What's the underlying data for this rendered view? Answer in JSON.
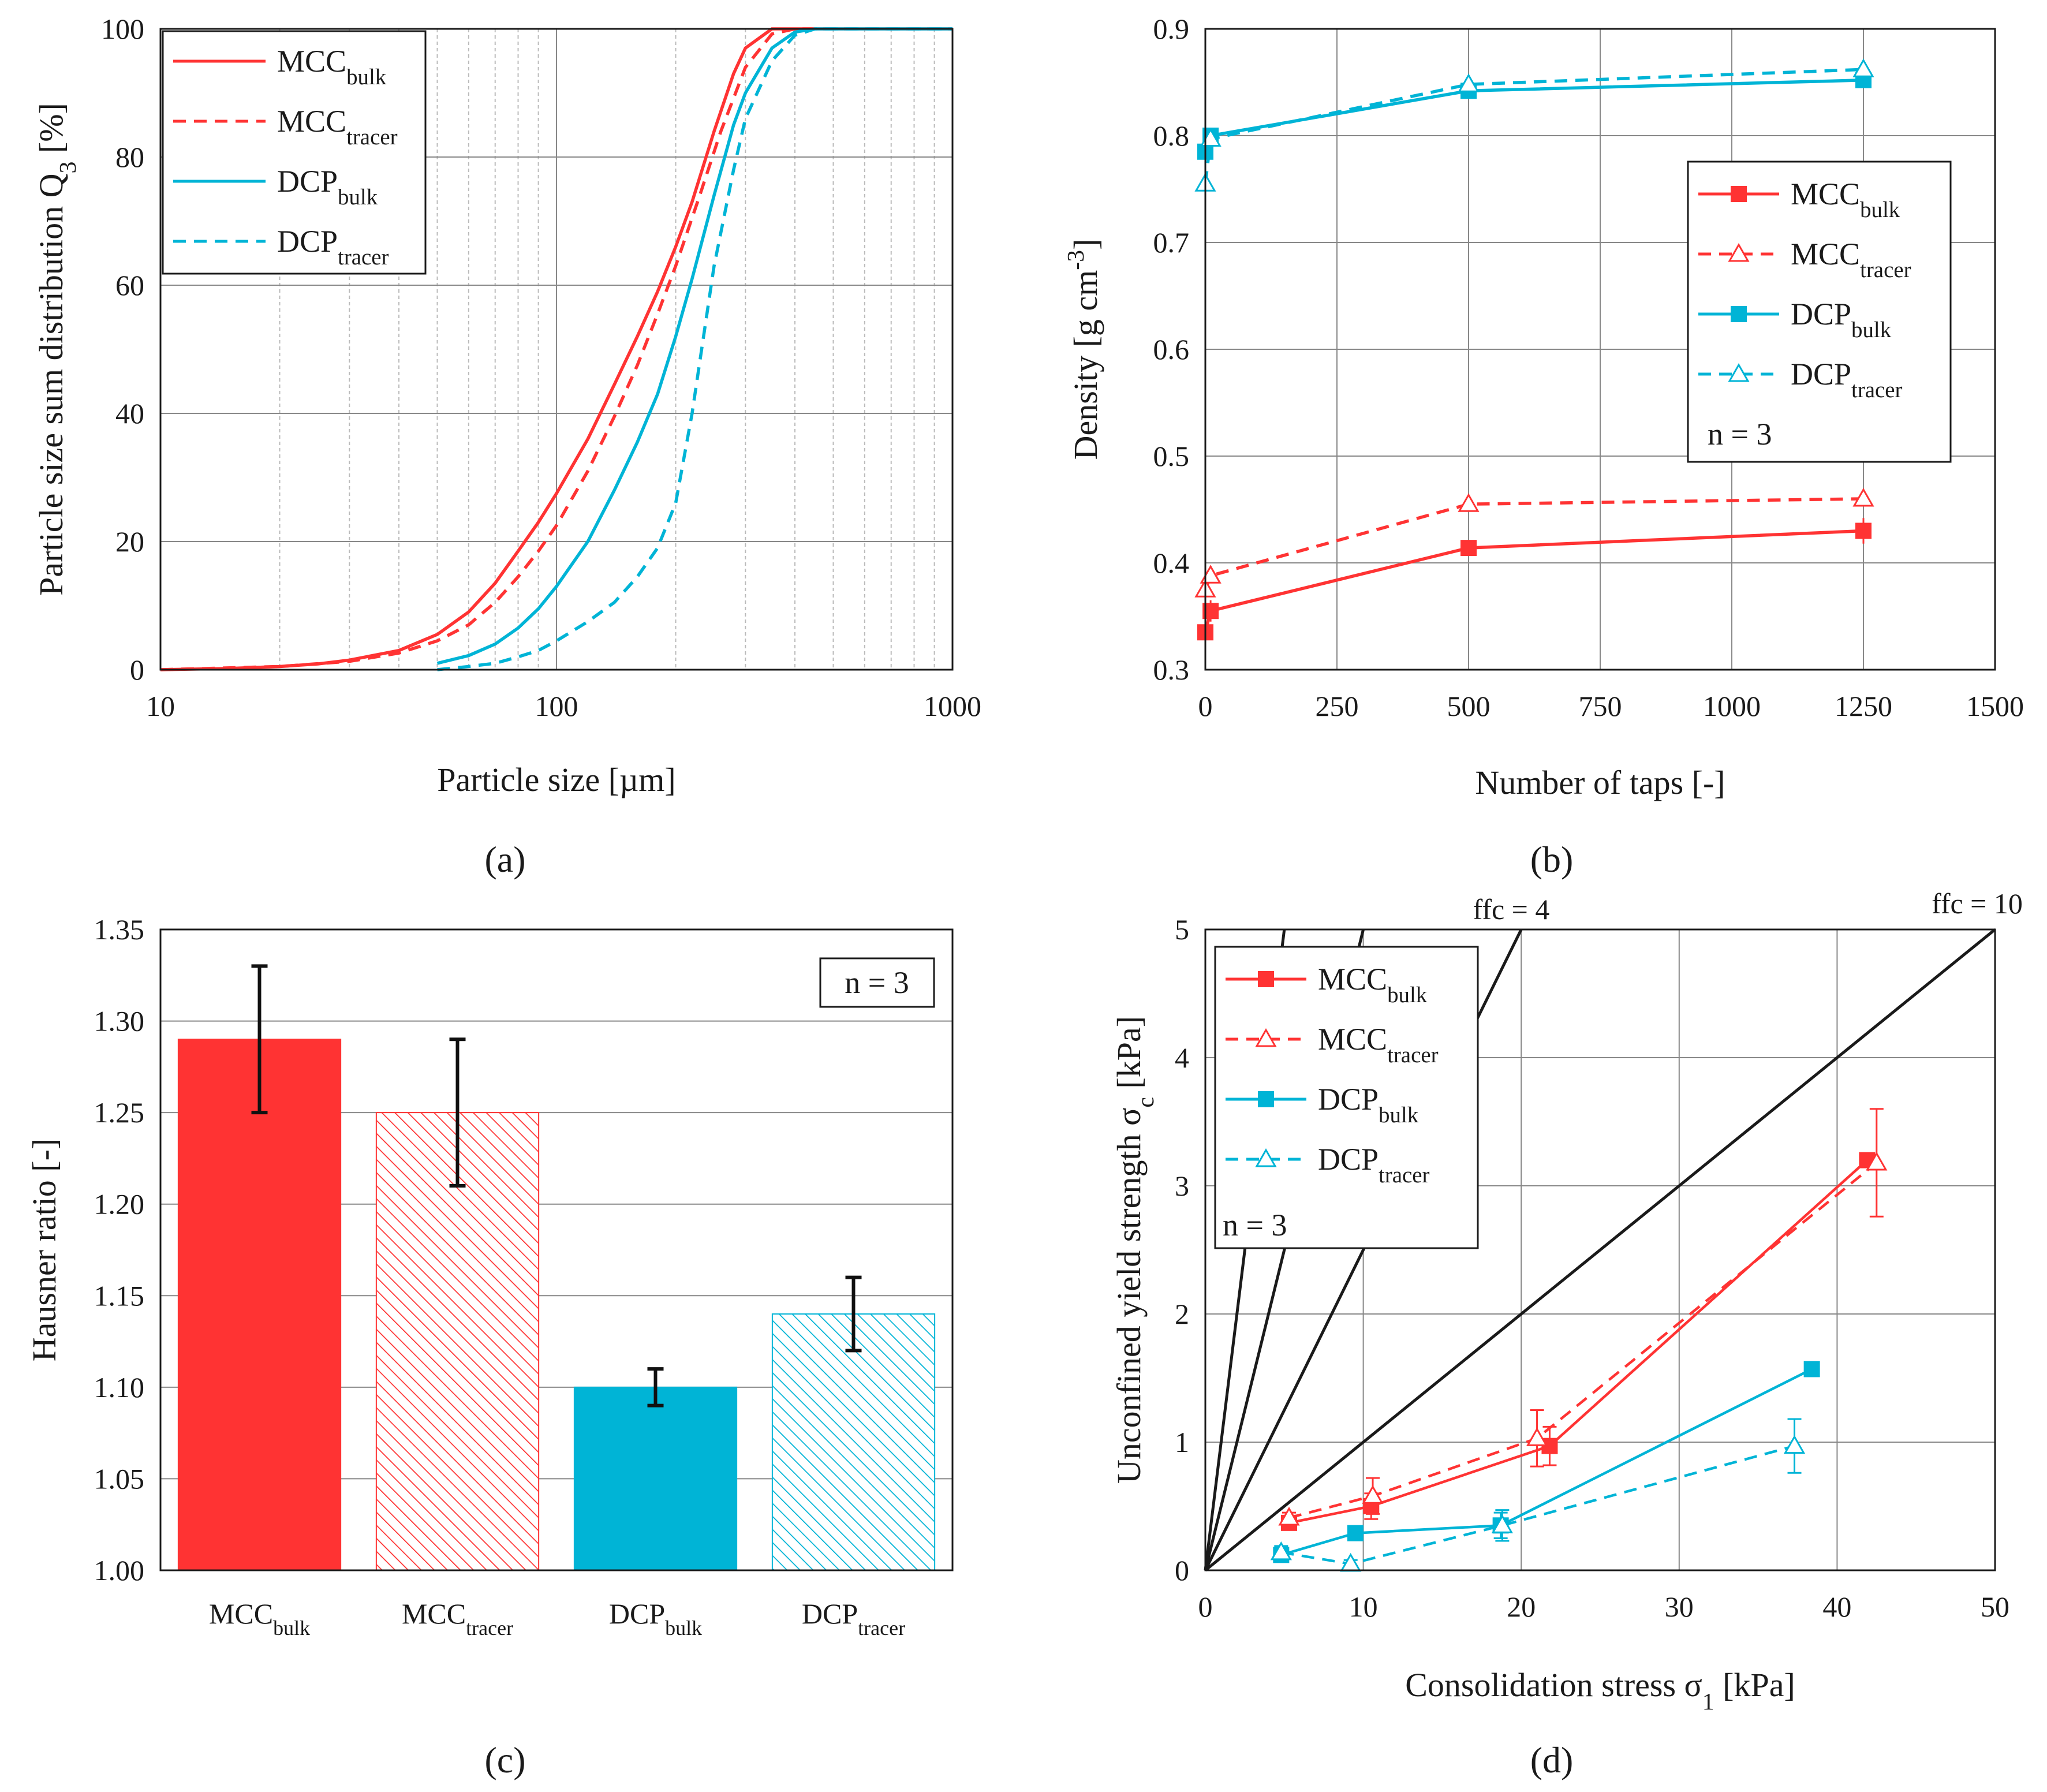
{
  "colors": {
    "mcc": "#ff3333",
    "dcp": "#00b4d6",
    "grid": "#888888",
    "minor_grid": "#bbbbbb",
    "axis": "#1a1a1a",
    "errorbar": "#111111"
  },
  "figure": {
    "panels": [
      "(a)",
      "(b)",
      "(c)",
      "(d)"
    ]
  },
  "chart_data": [
    {
      "id": "a",
      "type": "line",
      "panel_label": "(a)",
      "xscale": "log",
      "xlabel": "Particle size [µm]",
      "ylabel": "Particle size sum distribution Q",
      "ylabel_sub": "3",
      "ylabel_unit": " [%]",
      "xlim": [
        10,
        1000
      ],
      "ylim": [
        0,
        100
      ],
      "xticks": [
        10,
        100,
        1000
      ],
      "yticks": [
        0,
        20,
        40,
        60,
        80,
        100
      ],
      "grid": true,
      "legend_position": "top-left",
      "series": [
        {
          "name": "MCC",
          "sub": "bulk",
          "color": "mcc",
          "dash": "solid",
          "x": [
            10,
            15,
            20,
            25,
            30,
            40,
            50,
            60,
            70,
            80,
            90,
            100,
            120,
            140,
            160,
            180,
            200,
            220,
            250,
            280,
            300,
            350,
            400,
            1000
          ],
          "y": [
            0,
            0.2,
            0.5,
            0.9,
            1.5,
            3,
            5.5,
            9,
            13.5,
            18.5,
            23,
            27.5,
            36,
            44.5,
            52,
            59,
            66,
            73,
            84,
            93,
            97,
            100,
            100,
            100
          ]
        },
        {
          "name": "MCC",
          "sub": "tracer",
          "color": "mcc",
          "dash": "dashed",
          "x": [
            10,
            20,
            30,
            40,
            50,
            60,
            70,
            80,
            90,
            100,
            120,
            140,
            160,
            180,
            200,
            230,
            260,
            300,
            350,
            400,
            1000
          ],
          "y": [
            0,
            0.5,
            1.3,
            2.6,
            4.5,
            7,
            10.5,
            14.5,
            18.5,
            22.5,
            31,
            39.5,
            47.5,
            55.5,
            63,
            74,
            84,
            94,
            99.2,
            100,
            100
          ]
        },
        {
          "name": "DCP",
          "sub": "bulk",
          "color": "dcp",
          "dash": "solid",
          "x": [
            50,
            60,
            70,
            80,
            90,
            100,
            120,
            140,
            160,
            180,
            200,
            220,
            250,
            280,
            300,
            350,
            400,
            450,
            1000
          ],
          "y": [
            1,
            2.2,
            4,
            6.5,
            9.5,
            13,
            20,
            28,
            35.5,
            43,
            52,
            61,
            74,
            85,
            90,
            97,
            99.5,
            100,
            100
          ]
        },
        {
          "name": "DCP",
          "sub": "tracer",
          "color": "dcp",
          "dash": "dashed",
          "x": [
            50,
            60,
            70,
            80,
            90,
            100,
            120,
            140,
            160,
            180,
            200,
            220,
            250,
            280,
            300,
            350,
            400,
            450,
            1000
          ],
          "y": [
            0,
            0.5,
            1,
            2,
            3,
            4.5,
            7.5,
            10.5,
            14.5,
            19,
            26,
            40,
            63,
            78,
            86,
            95,
            99,
            100,
            100
          ]
        }
      ]
    },
    {
      "id": "b",
      "type": "line",
      "panel_label": "(b)",
      "xlabel": "Number of taps [-]",
      "ylabel": "Density [g cm",
      "ylabel_sup": "-3",
      "ylabel_end": "]",
      "xlim": [
        0,
        1500
      ],
      "ylim": [
        0.3,
        0.9
      ],
      "xticks": [
        0,
        250,
        500,
        750,
        1000,
        1250,
        1500
      ],
      "yticks": [
        0.3,
        0.4,
        0.5,
        0.6,
        0.7,
        0.8,
        0.9
      ],
      "grid": true,
      "legend_position": "right",
      "annotation": "n = 3",
      "series": [
        {
          "name": "MCC",
          "sub": "bulk",
          "color": "mcc",
          "dash": "solid",
          "marker": "square-filled",
          "x": [
            0,
            10,
            500,
            1250
          ],
          "y": [
            0.335,
            0.355,
            0.414,
            0.43
          ],
          "err": [
            0.01,
            0.01,
            0.005,
            0.012
          ]
        },
        {
          "name": "MCC",
          "sub": "tracer",
          "color": "mcc",
          "dash": "dashed",
          "marker": "triangle-open",
          "x": [
            0,
            10,
            500,
            1250
          ],
          "y": [
            0.375,
            0.388,
            0.455,
            0.46
          ],
          "err": [
            0.01,
            0.006,
            0.005,
            0.005
          ]
        },
        {
          "name": "DCP",
          "sub": "bulk",
          "color": "dcp",
          "dash": "solid",
          "marker": "square-filled",
          "x": [
            0,
            10,
            500,
            1250
          ],
          "y": [
            0.785,
            0.8,
            0.842,
            0.852
          ],
          "err": [
            0.008,
            0.006,
            0.004,
            0.006
          ]
        },
        {
          "name": "DCP",
          "sub": "tracer",
          "color": "dcp",
          "dash": "dashed",
          "marker": "triangle-open",
          "x": [
            0,
            10,
            500,
            1250
          ],
          "y": [
            0.755,
            0.797,
            0.848,
            0.862
          ],
          "err": [
            0.008,
            0.006,
            0.004,
            0.006
          ]
        }
      ]
    },
    {
      "id": "c",
      "type": "bar",
      "panel_label": "(c)",
      "ylabel": "Hausner ratio [-]",
      "ylim": [
        1.0,
        1.35
      ],
      "yticks": [
        "1.00",
        "1.05",
        "1.10",
        "1.15",
        "1.20",
        "1.25",
        "1.30",
        "1.35"
      ],
      "grid": true,
      "annotation": "n = 3",
      "categories": [
        {
          "name": "MCC",
          "sub": "bulk"
        },
        {
          "name": "MCC",
          "sub": "tracer"
        },
        {
          "name": "DCP",
          "sub": "bulk"
        },
        {
          "name": "DCP",
          "sub": "tracer"
        }
      ],
      "values": [
        1.29,
        1.25,
        1.1,
        1.14
      ],
      "err_low": [
        1.25,
        1.21,
        1.09,
        1.12
      ],
      "err_high": [
        1.33,
        1.29,
        1.11,
        1.16
      ],
      "fill": [
        "solid",
        "hatched",
        "solid",
        "hatched"
      ],
      "bar_colors": [
        "mcc",
        "mcc",
        "dcp",
        "dcp"
      ]
    },
    {
      "id": "d",
      "type": "line",
      "panel_label": "(d)",
      "xlabel": "Consolidation stress σ",
      "xlabel_sub": "1",
      "xlabel_unit": " [kPa]",
      "ylabel": "Unconfined yield strength σ",
      "ylabel_sub": "c",
      "ylabel_unit": " [kPa]",
      "xlim": [
        0,
        50
      ],
      "ylim": [
        0,
        5
      ],
      "xticks": [
        0,
        10,
        20,
        30,
        40,
        50
      ],
      "yticks": [
        0,
        1,
        2,
        3,
        4,
        5
      ],
      "grid": true,
      "legend_position": "top-left",
      "annotation": "n = 3",
      "ffc_lines": [
        1,
        2,
        4,
        10
      ],
      "ffc_labels": [
        "ffc = 4",
        "ffc = 10"
      ],
      "series": [
        {
          "name": "MCC",
          "sub": "bulk",
          "color": "mcc",
          "dash": "solid",
          "marker": "square-filled",
          "x": [
            5.3,
            10.5,
            21.8,
            41.9
          ],
          "y": [
            0.37,
            0.5,
            0.97,
            3.2
          ],
          "err": [
            0.05,
            0.1,
            0.15,
            0.03
          ]
        },
        {
          "name": "MCC",
          "sub": "tracer",
          "color": "mcc",
          "dash": "dashed",
          "marker": "triangle-open",
          "x": [
            5.3,
            10.6,
            21.0,
            42.5
          ],
          "y": [
            0.41,
            0.58,
            1.03,
            3.18
          ],
          "err": [
            0.04,
            0.14,
            0.22,
            0.42
          ]
        },
        {
          "name": "DCP",
          "sub": "bulk",
          "color": "dcp",
          "dash": "solid",
          "marker": "square-filled",
          "x": [
            4.8,
            9.5,
            18.7,
            38.4
          ],
          "y": [
            0.12,
            0.29,
            0.35,
            1.57
          ],
          "err": [
            0.03,
            0.03,
            0.1,
            0.02
          ]
        },
        {
          "name": "DCP",
          "sub": "tracer",
          "color": "dcp",
          "dash": "dashed",
          "marker": "triangle-open",
          "x": [
            4.8,
            9.2,
            18.8,
            37.3
          ],
          "y": [
            0.14,
            0.05,
            0.35,
            0.97
          ],
          "err": [
            0.05,
            0.03,
            0.12,
            0.21
          ]
        }
      ]
    }
  ]
}
